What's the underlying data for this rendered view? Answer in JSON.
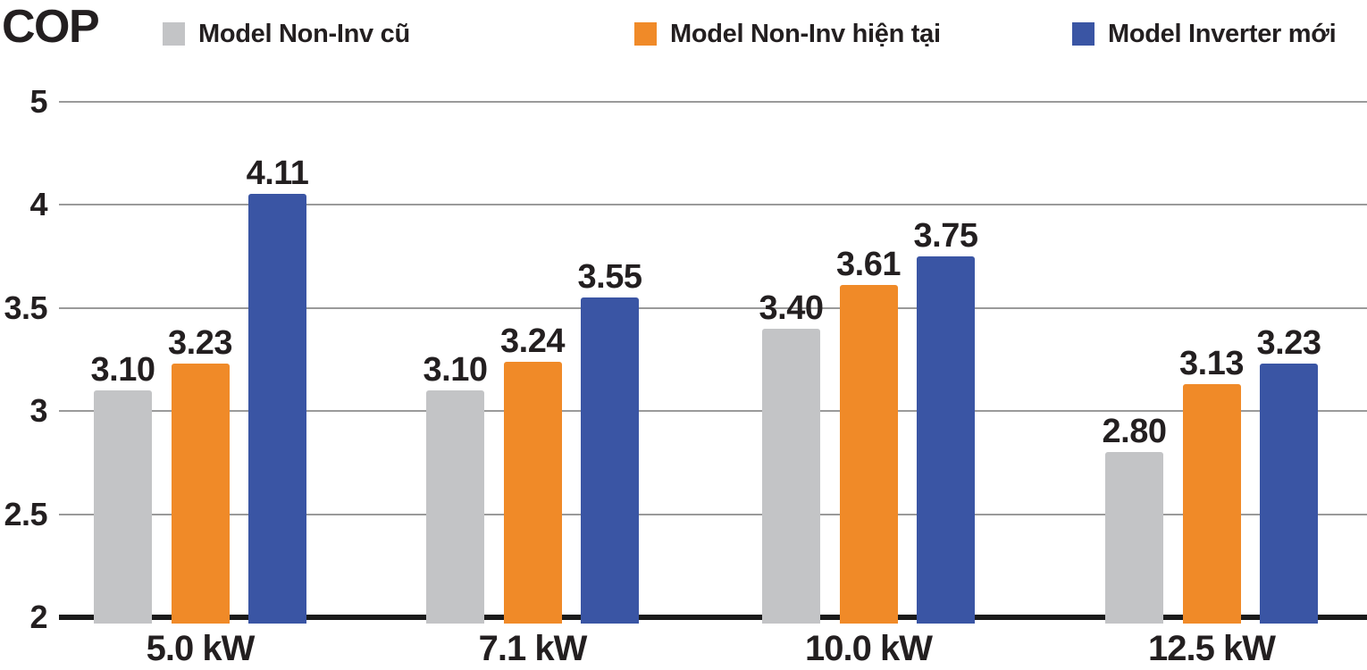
{
  "chart_data": {
    "type": "bar",
    "title": "COP",
    "ylabel": "COP",
    "categories": [
      "5.0 kW",
      "7.1 kW",
      "10.0 kW",
      "12.5 kW"
    ],
    "series": [
      {
        "name": "Model Non-Inv cũ",
        "color": "#c3c4c6",
        "values": [
          3.1,
          3.1,
          3.4,
          2.8
        ],
        "labels": [
          "3.10",
          "3.10",
          "3.40",
          "2.80"
        ]
      },
      {
        "name": "Model Non-Inv hiện tại",
        "color": "#f08a28",
        "values": [
          3.23,
          3.24,
          3.61,
          3.13
        ],
        "labels": [
          "3.23",
          "3.24",
          "3.61",
          "3.13"
        ]
      },
      {
        "name": "Model Inverter mới",
        "color": "#3a55a4",
        "values": [
          4.11,
          3.55,
          3.75,
          3.23
        ],
        "labels": [
          "4.11",
          "3.55",
          "3.75",
          "3.23"
        ]
      }
    ],
    "ylim": [
      2,
      5
    ],
    "yticks": [
      2,
      2.5,
      3,
      3.5,
      4,
      5
    ],
    "ytick_labels": [
      "2",
      "2.5",
      "3",
      "3.5",
      "4",
      "5"
    ],
    "tick_spacing": "equal",
    "grid": true,
    "legend_position": "top",
    "colors": {
      "axis": "#1b1b1b",
      "gridline": "#9a9a9a",
      "text": "#231f20"
    }
  }
}
